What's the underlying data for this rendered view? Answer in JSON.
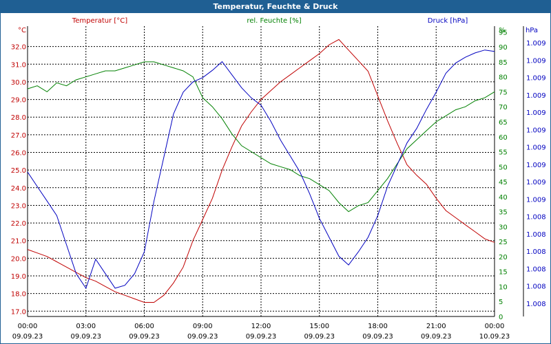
{
  "window": {
    "title": "Temperatur, Feuchte & Druck"
  },
  "colors": {
    "temperature": "#c00000",
    "humidity": "#008000",
    "pressure": "#0000c0",
    "grid": "#000000",
    "title_bar": "#1f5f93"
  },
  "chart_data": {
    "type": "line",
    "title": "Temperatur, Feuchte & Druck",
    "grid": true,
    "x_ticks": [
      {
        "time": "00:00",
        "date": "09.09.23"
      },
      {
        "time": "03:00",
        "date": "09.09.23"
      },
      {
        "time": "06:00",
        "date": "09.09.23"
      },
      {
        "time": "09:00",
        "date": "09.09.23"
      },
      {
        "time": "12:00",
        "date": "09.09.23"
      },
      {
        "time": "15:00",
        "date": "09.09.23"
      },
      {
        "time": "18:00",
        "date": "09.09.23"
      },
      {
        "time": "21:00",
        "date": "09.09.23"
      },
      {
        "time": "00:00",
        "date": "10.09.23"
      }
    ],
    "axes": {
      "left": {
        "unit_label": "°C",
        "header": "Temperatur [°C]",
        "ylim": [
          16.7,
          33.0
        ],
        "ticks": [
          "17.0",
          "18.0",
          "19.0",
          "20.0",
          "21.0",
          "22.0",
          "23.0",
          "24.0",
          "25.0",
          "26.0",
          "27.0",
          "28.0",
          "29.0",
          "30.0",
          "31.0",
          "32.0"
        ]
      },
      "middle": {
        "unit_label": "%",
        "header": "rel. Feuchte [%]",
        "ylim": [
          0,
          96
        ],
        "ticks": [
          "0",
          "5",
          "10",
          "15",
          "20",
          "25",
          "30",
          "35",
          "40",
          "45",
          "50",
          "55",
          "60",
          "65",
          "70",
          "75",
          "80",
          "85",
          "90",
          "95"
        ]
      },
      "right": {
        "unit_label": "hPa",
        "header": "Druck [hPa]",
        "ticks": [
          "1.008",
          "1.008",
          "1.008",
          "1.008",
          "1.008",
          "1.008",
          "1.009",
          "1.009",
          "1.009",
          "1.009",
          "1.009",
          "1.009",
          "1.009",
          "1.009",
          "1.009",
          "1.009"
        ]
      }
    },
    "series": [
      {
        "name": "Temperatur [°C]",
        "axis": "left",
        "x": [
          0,
          0.5,
          1,
          1.5,
          2,
          2.5,
          3,
          3.5,
          4,
          4.5,
          5,
          5.5,
          6,
          6.5,
          7,
          7.5,
          8,
          8.5,
          9,
          9.5,
          10,
          10.5,
          11,
          11.5,
          12,
          12.5,
          13,
          13.5,
          14,
          14.5,
          15,
          15.5,
          16,
          16.5,
          17,
          17.5,
          18,
          18.5,
          19,
          19.5,
          20,
          20.5,
          21,
          21.5,
          22,
          22.5,
          23,
          23.5,
          24
        ],
        "y": [
          20.5,
          20.3,
          20.1,
          19.8,
          19.5,
          19.2,
          18.9,
          18.7,
          18.4,
          18.1,
          17.9,
          17.7,
          17.5,
          17.5,
          17.9,
          18.6,
          19.5,
          21.0,
          22.2,
          23.4,
          25.0,
          26.3,
          27.5,
          28.3,
          29.0,
          29.5,
          30.0,
          30.4,
          30.8,
          31.2,
          31.6,
          32.1,
          32.4,
          31.8,
          31.2,
          30.6,
          29.2,
          27.8,
          26.5,
          25.3,
          24.7,
          24.2,
          23.4,
          22.7,
          22.3,
          21.9,
          21.5,
          21.1,
          20.9
        ]
      },
      {
        "name": "rel. Feuchte [%]",
        "axis": "middle",
        "x": [
          0,
          0.5,
          1,
          1.5,
          2,
          2.5,
          3,
          3.5,
          4,
          4.5,
          5,
          5.5,
          6,
          6.5,
          7,
          7.5,
          8,
          8.5,
          9,
          9.5,
          10,
          10.5,
          11,
          11.5,
          12,
          12.5,
          13,
          13.5,
          14,
          14.5,
          15,
          15.5,
          16,
          16.5,
          17,
          17.5,
          18,
          18.5,
          19,
          19.5,
          20,
          20.5,
          21,
          21.5,
          22,
          22.5,
          23,
          23.5,
          24
        ],
        "y": [
          76,
          77,
          75,
          78,
          77,
          79,
          80,
          81,
          82,
          82,
          83,
          84,
          85,
          85,
          84,
          83,
          82,
          80,
          73,
          70,
          66,
          61,
          57,
          55,
          53,
          51,
          50,
          49,
          47,
          46,
          44,
          42,
          38,
          35,
          37,
          38,
          42,
          46,
          51,
          56,
          59,
          62,
          65,
          67,
          69,
          70,
          72,
          73,
          75
        ]
      },
      {
        "name": "Druck [hPa]",
        "axis": "right",
        "x": [
          0,
          0.5,
          1,
          1.5,
          2,
          2.5,
          3,
          3.5,
          4,
          4.5,
          5,
          5.5,
          6,
          6.5,
          7,
          7.5,
          8,
          8.5,
          9,
          9.5,
          10,
          10.5,
          11,
          11.5,
          12,
          12.5,
          13,
          13.5,
          14,
          14.5,
          15,
          15.5,
          16,
          16.5,
          17,
          17.5,
          18,
          18.5,
          19,
          19.5,
          20,
          20.5,
          21,
          21.5,
          22,
          22.5,
          23,
          23.5,
          24
        ],
        "y": [
          9,
          8,
          7,
          6,
          4,
          2,
          1,
          3,
          2,
          1,
          1.2,
          2,
          3.5,
          7,
          10,
          13,
          14.5,
          15.2,
          15.5,
          16,
          16.6,
          15.7,
          14.8,
          14.1,
          13.6,
          12.5,
          11.2,
          10.1,
          9.0,
          7.5,
          5.8,
          4.5,
          3.2,
          2.6,
          3.5,
          4.5,
          6,
          8,
          9.5,
          11,
          12,
          13.3,
          14.5,
          15.8,
          16.5,
          16.9,
          17.2,
          17.4,
          17.3
        ]
      }
    ]
  }
}
